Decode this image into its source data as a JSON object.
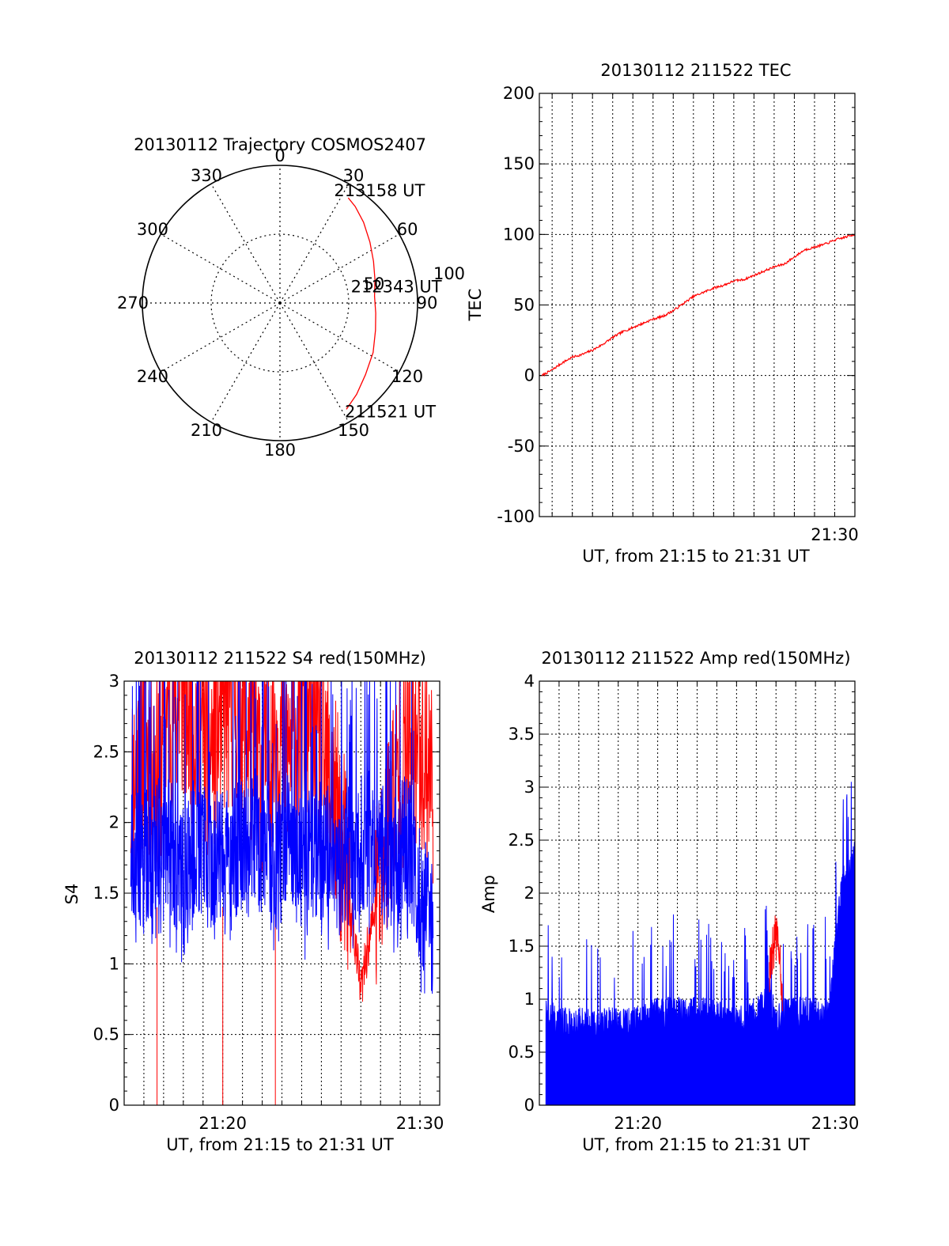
{
  "chart_data": [
    {
      "type": "polar",
      "title": "20130112 Trajectory COSMOS2407",
      "angle_labels": [
        "0",
        "30",
        "60",
        "90",
        "120",
        "150",
        "180",
        "210",
        "240",
        "270",
        "300",
        "330"
      ],
      "radial_labels": [
        "50",
        "100"
      ],
      "grid": true,
      "track_color": "#ff0000",
      "track": [
        {
          "azimuth": 148,
          "elevation": 8
        },
        {
          "azimuth": 140,
          "elevation": 12
        },
        {
          "azimuth": 130,
          "elevation": 17
        },
        {
          "azimuth": 118,
          "elevation": 21
        },
        {
          "azimuth": 106,
          "elevation": 25
        },
        {
          "azimuth": 96,
          "elevation": 27
        },
        {
          "azimuth": 86,
          "elevation": 28
        },
        {
          "azimuth": 76,
          "elevation": 26
        },
        {
          "azimuth": 66,
          "elevation": 23
        },
        {
          "azimuth": 56,
          "elevation": 19
        },
        {
          "azimuth": 46,
          "elevation": 14
        },
        {
          "azimuth": 38,
          "elevation": 10
        },
        {
          "azimuth": 33,
          "elevation": 8
        }
      ],
      "annotations": [
        {
          "text": "213158 UT",
          "azimuth": 33,
          "elevation": 8
        },
        {
          "text": "212343 UT",
          "azimuth": 86,
          "elevation": 28
        },
        {
          "text": "211521 UT",
          "azimuth": 148,
          "elevation": 8
        }
      ]
    },
    {
      "type": "line",
      "title": "20130112 211522 TEC",
      "xlabel": "UT, from 21:15 to 21:31 UT",
      "ylabel": "TEC",
      "xlim": [
        "21:15:22",
        "21:31:00"
      ],
      "ylim": [
        -100,
        200
      ],
      "xticks": [
        "21:30"
      ],
      "yticks": [
        "-100",
        "-50",
        "0",
        "50",
        "100",
        "150",
        "200"
      ],
      "grid": true,
      "series": [
        {
          "color": "#ff0000",
          "x": [
            "21:15:30",
            "21:16:00",
            "21:16:30",
            "21:17:00",
            "21:17:30",
            "21:18:00",
            "21:18:30",
            "21:19:00",
            "21:19:30",
            "21:20:00",
            "21:20:30",
            "21:21:00",
            "21:21:30",
            "21:22:00",
            "21:22:30",
            "21:23:00",
            "21:23:30",
            "21:24:00",
            "21:24:30",
            "21:25:00",
            "21:25:30",
            "21:26:00",
            "21:26:30",
            "21:27:00",
            "21:27:30",
            "21:28:00",
            "21:28:30",
            "21:29:00",
            "21:29:30",
            "21:30:00",
            "21:30:30",
            "21:31:00"
          ],
          "values": [
            0,
            4,
            9,
            13,
            15,
            18,
            22,
            27,
            31,
            34,
            37,
            40,
            42,
            46,
            51,
            56,
            59,
            62,
            64,
            67,
            68,
            71,
            74,
            77,
            79,
            84,
            89,
            91,
            93,
            96,
            98,
            100
          ]
        }
      ]
    },
    {
      "type": "line",
      "title": "20130112 211522 S4 red(150MHz)",
      "xlabel": "UT, from 21:15 to 21:31 UT",
      "ylabel": "S4",
      "xlim": [
        "21:15:00",
        "21:31:00"
      ],
      "ylim": [
        0,
        3
      ],
      "xticks": [
        "21:20",
        "21:30"
      ],
      "yticks": [
        "0",
        "0.5",
        "1",
        "1.5",
        "2",
        "2.5",
        "3"
      ],
      "grid": true,
      "series": [
        {
          "color": "#ff0000",
          "x": [
            "21:15:20",
            "21:16:00",
            "21:16:40",
            "21:17:20",
            "21:18:00",
            "21:18:40",
            "21:19:20",
            "21:20:00",
            "21:20:40",
            "21:21:20",
            "21:22:00",
            "21:22:40",
            "21:23:20",
            "21:24:00",
            "21:24:40",
            "21:25:20",
            "21:26:00",
            "21:26:40",
            "21:27:00",
            "21:27:20",
            "21:28:00",
            "21:28:40",
            "21:29:20",
            "21:30:00",
            "21:30:40"
          ],
          "values": [
            2.2,
            2.6,
            2.4,
            2.8,
            2.9,
            2.7,
            2.5,
            2.8,
            2.9,
            2.6,
            2.4,
            2.7,
            2.5,
            2.8,
            2.6,
            2.3,
            1.9,
            1.2,
            0.8,
            1.1,
            1.6,
            2.2,
            2.5,
            2.6,
            2.3
          ]
        },
        {
          "color": "#0000ff",
          "x": [
            "21:15:20",
            "21:16:00",
            "21:16:40",
            "21:17:20",
            "21:18:00",
            "21:18:40",
            "21:19:20",
            "21:20:00",
            "21:20:40",
            "21:21:20",
            "21:22:00",
            "21:22:40",
            "21:23:20",
            "21:24:00",
            "21:24:40",
            "21:25:20",
            "21:26:00",
            "21:26:40",
            "21:27:20",
            "21:28:00",
            "21:28:40",
            "21:29:20",
            "21:30:00",
            "21:30:40"
          ],
          "values": [
            1.8,
            1.7,
            1.9,
            1.8,
            1.6,
            1.9,
            1.7,
            1.8,
            1.8,
            2.0,
            1.8,
            1.7,
            1.9,
            1.7,
            1.8,
            1.8,
            1.7,
            1.8,
            1.9,
            1.8,
            1.7,
            1.9,
            1.5,
            1.2
          ]
        }
      ]
    },
    {
      "type": "line",
      "title": "20130112 211522 Amp red(150MHz)",
      "xlabel": "UT, from 21:15 to 21:31 UT",
      "ylabel": "Amp",
      "xlim": [
        "21:15:00",
        "21:31:00"
      ],
      "ylim": [
        0,
        4
      ],
      "xticks": [
        "21:20",
        "21:30"
      ],
      "yticks": [
        "0",
        "0.5",
        "1",
        "1.5",
        "2",
        "2.5",
        "3",
        "3.5",
        "4"
      ],
      "grid": true,
      "series": [
        {
          "color": "#0000ff",
          "x": [
            "21:15:20",
            "21:16:00",
            "21:17:00",
            "21:18:00",
            "21:19:00",
            "21:20:00",
            "21:21:00",
            "21:22:00",
            "21:23:00",
            "21:24:00",
            "21:25:00",
            "21:26:00",
            "21:26:40",
            "21:27:00",
            "21:27:20",
            "21:28:00",
            "21:29:00",
            "21:29:40",
            "21:30:00",
            "21:30:20",
            "21:31:00"
          ],
          "values": [
            1.0,
            0.9,
            0.9,
            0.9,
            0.9,
            0.9,
            1.0,
            1.0,
            1.0,
            1.0,
            0.9,
            1.0,
            1.2,
            0.9,
            1.0,
            1.0,
            1.0,
            1.0,
            1.6,
            2.2,
            2.5
          ]
        },
        {
          "color": "#ff0000",
          "x": [
            "21:26:40",
            "21:27:00",
            "21:27:20"
          ],
          "values": [
            1.3,
            1.6,
            1.1
          ]
        }
      ]
    }
  ]
}
